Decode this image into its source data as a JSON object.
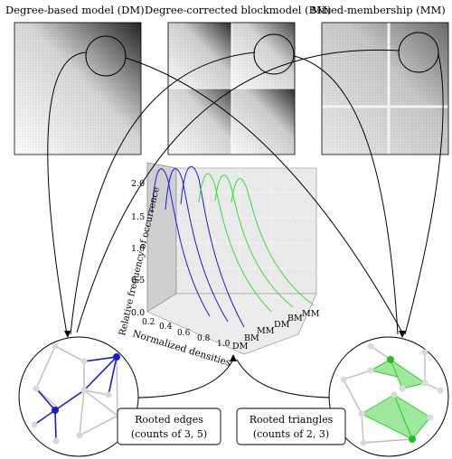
{
  "panels": {
    "dm_title": "Degree-based model (DM)",
    "bm_title": "Degree-corrected blockmodel (BM)",
    "mm_title": "Mixed-membership (MM)"
  },
  "plot3d": {
    "z_label": "Relative frequency of occurrence",
    "x_label": "Normalized densities",
    "z_ticks": [
      "0.0",
      "0.5",
      "1.0",
      "1.5",
      "2.0"
    ],
    "x_ticks": [
      "0.2",
      "0.4",
      "0.6",
      "0.8",
      "1.0"
    ],
    "model_ticks": [
      "DM",
      "BM",
      "MM",
      "DM",
      "BM",
      "MM"
    ],
    "colors": {
      "edges": "#1a1ad8",
      "triangles": "#33e033"
    }
  },
  "boxes": {
    "edges_line1": "Rooted edges",
    "edges_line2": "(counts of 3, 5)",
    "triangles_line1": "Rooted triangles",
    "triangles_line2": "(counts of 2, 3)"
  }
}
